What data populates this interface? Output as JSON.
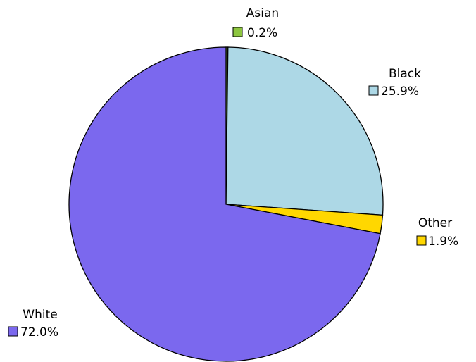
{
  "chart_data": {
    "type": "pie",
    "start_angle_deg": 0,
    "direction": "clockwise",
    "slice_outline_color": "#000000",
    "slices": [
      {
        "label": "Asian",
        "value": 0.2,
        "value_label": "0.2%",
        "color": "#8dc63f"
      },
      {
        "label": "Black",
        "value": 25.9,
        "value_label": "25.9%",
        "color": "#add8e6"
      },
      {
        "label": "Other",
        "value": 1.9,
        "value_label": "1.9%",
        "color": "#ffd700"
      },
      {
        "label": "White",
        "value": 72.0,
        "value_label": "72.0%",
        "color": "#7b68ee"
      }
    ]
  }
}
